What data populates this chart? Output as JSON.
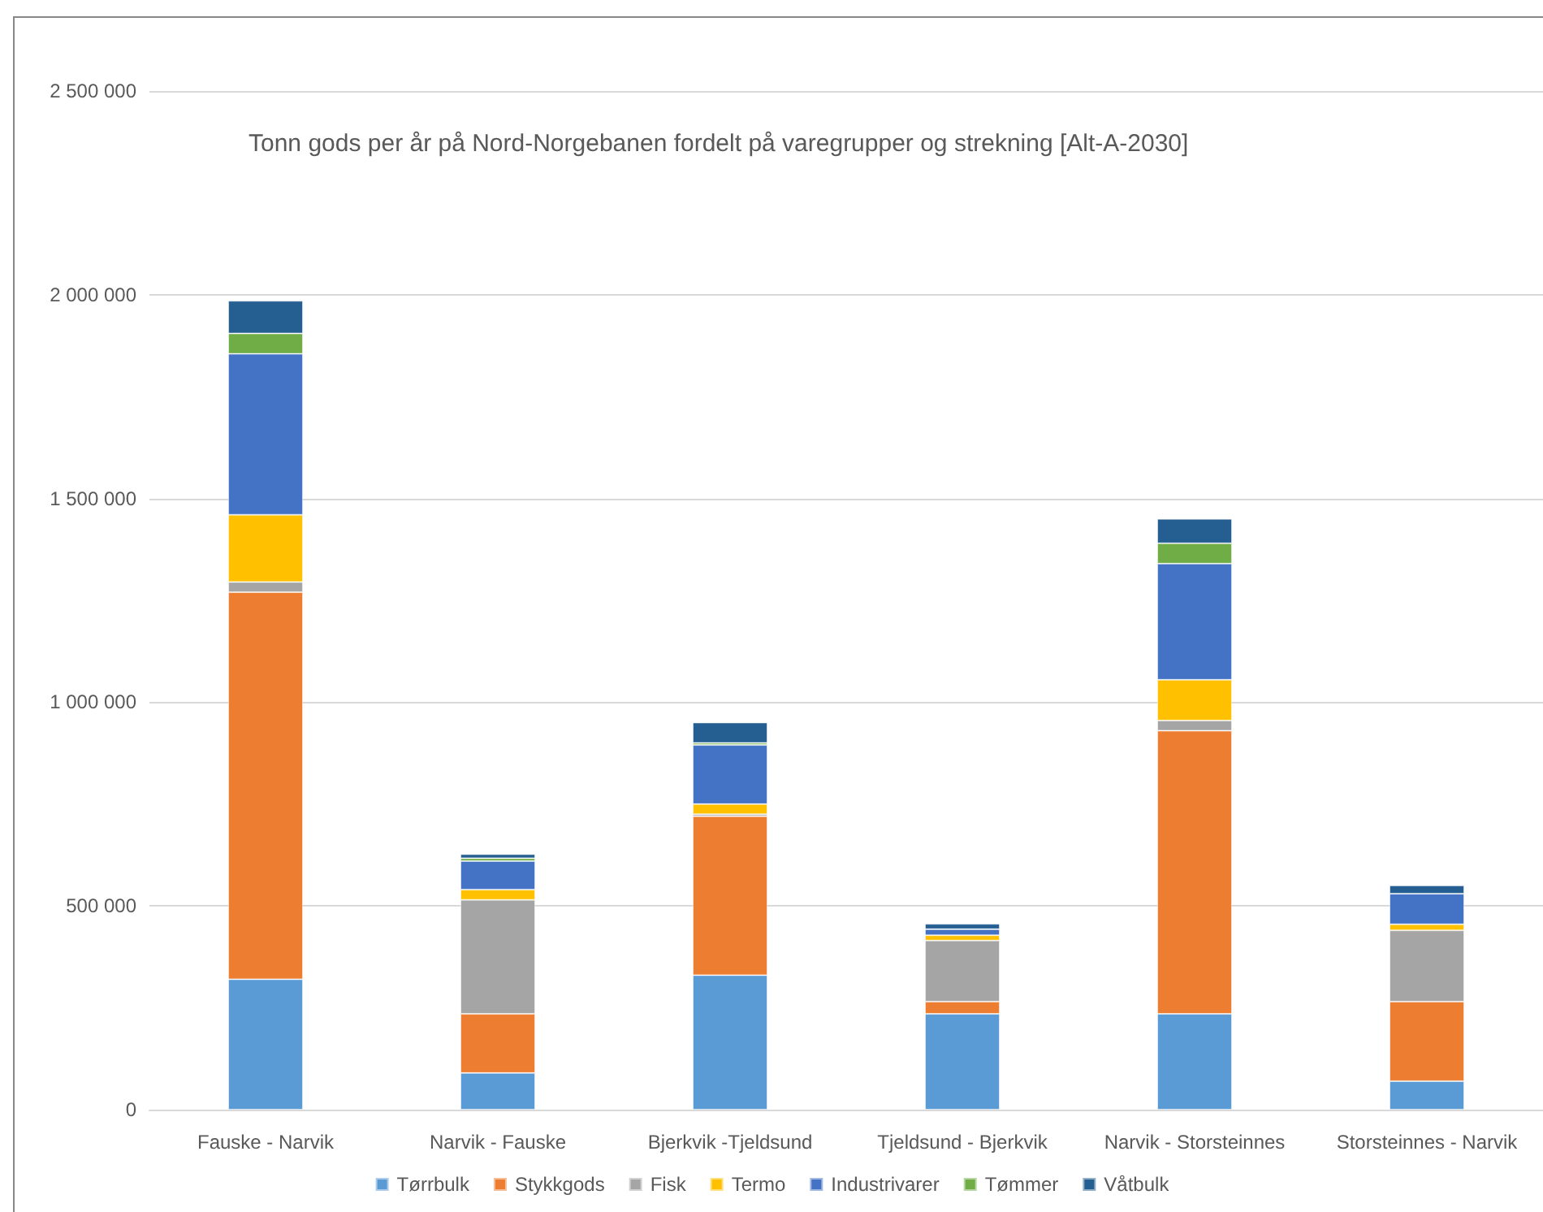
{
  "chart_data": {
    "type": "bar",
    "title": "Tonn gods per år på Nord-Norgebanen fordelt på varegrupper og strekning [Alt-A-2030]",
    "categories": [
      "Fauske - Narvik",
      "Narvik - Fauske",
      "Bjerkvik -Tjeldsund",
      "Tjeldsund - Bjerkvik",
      "Narvik - Storsteinnes",
      "Storsteinnes - Narvik"
    ],
    "stacked": true,
    "series": [
      {
        "name": "Tørrbulk",
        "color": "#5b9bd5",
        "values": [
          320000,
          90000,
          330000,
          235000,
          235000,
          70000
        ]
      },
      {
        "name": "Stykkgods",
        "color": "#ed7d31",
        "values": [
          950000,
          145000,
          390000,
          30000,
          695000,
          195000
        ]
      },
      {
        "name": "Fisk",
        "color": "#a5a5a5",
        "values": [
          25000,
          280000,
          5000,
          150000,
          25000,
          175000
        ]
      },
      {
        "name": "Termo",
        "color": "#ffc000",
        "values": [
          165000,
          25000,
          25000,
          13000,
          100000,
          15000
        ]
      },
      {
        "name": "Industrivarer",
        "color": "#4472c4",
        "values": [
          395000,
          70000,
          145000,
          15000,
          285000,
          75000
        ]
      },
      {
        "name": "Tømmer",
        "color": "#70ad47",
        "values": [
          50000,
          7000,
          5000,
          0,
          50000,
          0
        ]
      },
      {
        "name": "Våtbulk",
        "color": "#255e91",
        "values": [
          80000,
          10000,
          50000,
          13000,
          60000,
          20000
        ]
      }
    ],
    "ylim": [
      0,
      2500000
    ],
    "yticks": [
      {
        "value": 0,
        "label": "0"
      },
      {
        "value": 500000,
        "label": "500 000"
      },
      {
        "value": 1000000,
        "label": "1 000 000"
      },
      {
        "value": 1500000,
        "label": "1 500 000"
      },
      {
        "value": 2000000,
        "label": "2 000 000"
      },
      {
        "value": 2500000,
        "label": "2 500 000"
      }
    ],
    "grid": "y",
    "legend": "bottom"
  }
}
